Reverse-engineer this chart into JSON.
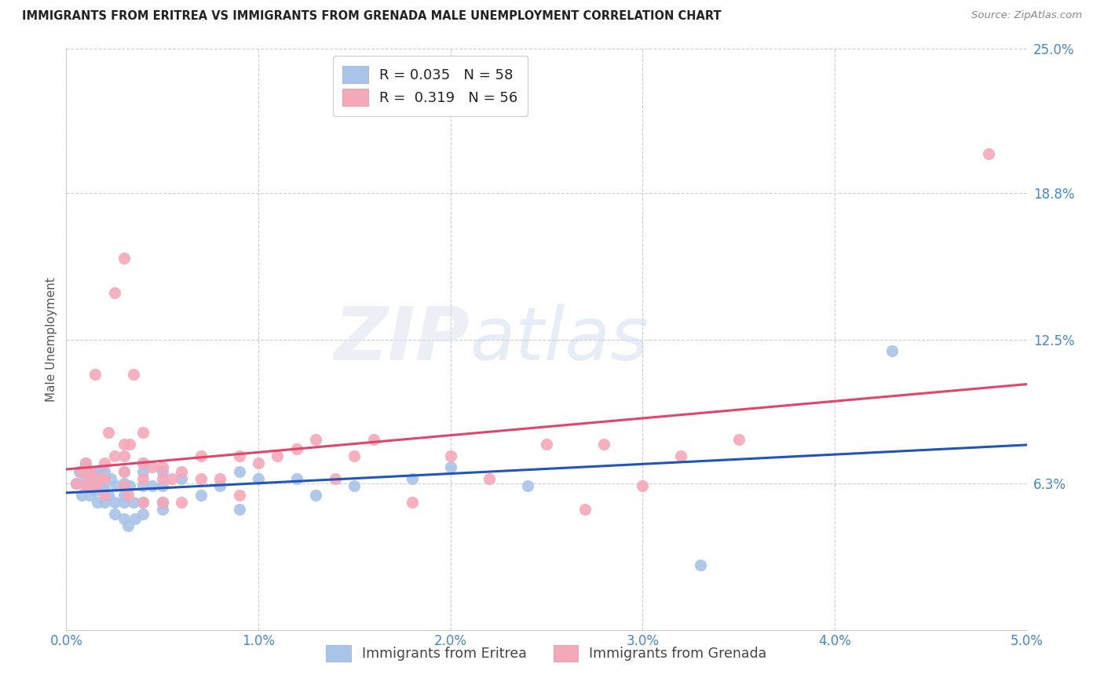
{
  "title": "IMMIGRANTS FROM ERITREA VS IMMIGRANTS FROM GRENADA MALE UNEMPLOYMENT CORRELATION CHART",
  "source": "Source: ZipAtlas.com",
  "ylabel": "Male Unemployment",
  "xlim": [
    0.0,
    0.05
  ],
  "ylim": [
    0.0,
    0.25
  ],
  "xtick_labels": [
    "0.0%",
    "1.0%",
    "2.0%",
    "3.0%",
    "4.0%",
    "5.0%"
  ],
  "xtick_values": [
    0.0,
    0.01,
    0.02,
    0.03,
    0.04,
    0.05
  ],
  "ytick_labels": [
    "25.0%",
    "18.8%",
    "12.5%",
    "6.3%"
  ],
  "ytick_values": [
    0.25,
    0.188,
    0.125,
    0.063
  ],
  "series": [
    {
      "name": "Immigrants from Eritrea",
      "R": 0.035,
      "N": 58,
      "color": "#a8c4e8",
      "line_color": "#2255bb",
      "x": [
        0.0005,
        0.0007,
        0.0008,
        0.001,
        0.001,
        0.001,
        0.001,
        0.0012,
        0.0013,
        0.0013,
        0.0015,
        0.0015,
        0.0016,
        0.0017,
        0.0018,
        0.002,
        0.002,
        0.002,
        0.002,
        0.002,
        0.0022,
        0.0023,
        0.0025,
        0.0025,
        0.0026,
        0.003,
        0.003,
        0.003,
        0.003,
        0.003,
        0.0032,
        0.0033,
        0.0035,
        0.0036,
        0.004,
        0.004,
        0.004,
        0.004,
        0.004,
        0.0045,
        0.005,
        0.005,
        0.005,
        0.005,
        0.006,
        0.007,
        0.008,
        0.009,
        0.009,
        0.01,
        0.012,
        0.013,
        0.015,
        0.018,
        0.02,
        0.024,
        0.033,
        0.043
      ],
      "y": [
        0.063,
        0.068,
        0.058,
        0.062,
        0.065,
        0.07,
        0.072,
        0.058,
        0.062,
        0.065,
        0.06,
        0.068,
        0.055,
        0.062,
        0.068,
        0.055,
        0.06,
        0.063,
        0.065,
        0.068,
        0.058,
        0.065,
        0.05,
        0.055,
        0.062,
        0.048,
        0.055,
        0.058,
        0.063,
        0.068,
        0.045,
        0.062,
        0.055,
        0.048,
        0.05,
        0.055,
        0.062,
        0.068,
        0.072,
        0.062,
        0.052,
        0.055,
        0.062,
        0.068,
        0.065,
        0.058,
        0.062,
        0.052,
        0.068,
        0.065,
        0.065,
        0.058,
        0.062,
        0.065,
        0.07,
        0.062,
        0.028,
        0.12
      ]
    },
    {
      "name": "Immigrants from Grenada",
      "R": 0.319,
      "N": 56,
      "color": "#f5a8b8",
      "line_color": "#e0456a",
      "x": [
        0.0005,
        0.0008,
        0.001,
        0.001,
        0.0012,
        0.0013,
        0.0015,
        0.0015,
        0.0018,
        0.002,
        0.002,
        0.002,
        0.0022,
        0.0025,
        0.0025,
        0.003,
        0.003,
        0.003,
        0.003,
        0.003,
        0.0032,
        0.0033,
        0.0035,
        0.004,
        0.004,
        0.004,
        0.004,
        0.0045,
        0.005,
        0.005,
        0.005,
        0.0055,
        0.006,
        0.006,
        0.007,
        0.007,
        0.008,
        0.009,
        0.009,
        0.01,
        0.011,
        0.012,
        0.013,
        0.014,
        0.015,
        0.016,
        0.018,
        0.02,
        0.022,
        0.025,
        0.027,
        0.028,
        0.03,
        0.032,
        0.035,
        0.048
      ],
      "y": [
        0.063,
        0.068,
        0.062,
        0.072,
        0.065,
        0.068,
        0.062,
        0.11,
        0.065,
        0.058,
        0.065,
        0.072,
        0.085,
        0.075,
        0.145,
        0.062,
        0.068,
        0.075,
        0.08,
        0.16,
        0.058,
        0.08,
        0.11,
        0.055,
        0.065,
        0.072,
        0.085,
        0.07,
        0.055,
        0.065,
        0.07,
        0.065,
        0.055,
        0.068,
        0.065,
        0.075,
        0.065,
        0.058,
        0.075,
        0.072,
        0.075,
        0.078,
        0.082,
        0.065,
        0.075,
        0.082,
        0.055,
        0.075,
        0.065,
        0.08,
        0.052,
        0.08,
        0.062,
        0.075,
        0.082,
        0.205
      ]
    }
  ],
  "watermark_zip": "ZIP",
  "watermark_atlas": "atlas",
  "background_color": "#ffffff",
  "grid_color": "#ccccdd",
  "title_fontsize": 10.5,
  "tick_label_color": "#4488cc",
  "ylabel_color": "#555555"
}
